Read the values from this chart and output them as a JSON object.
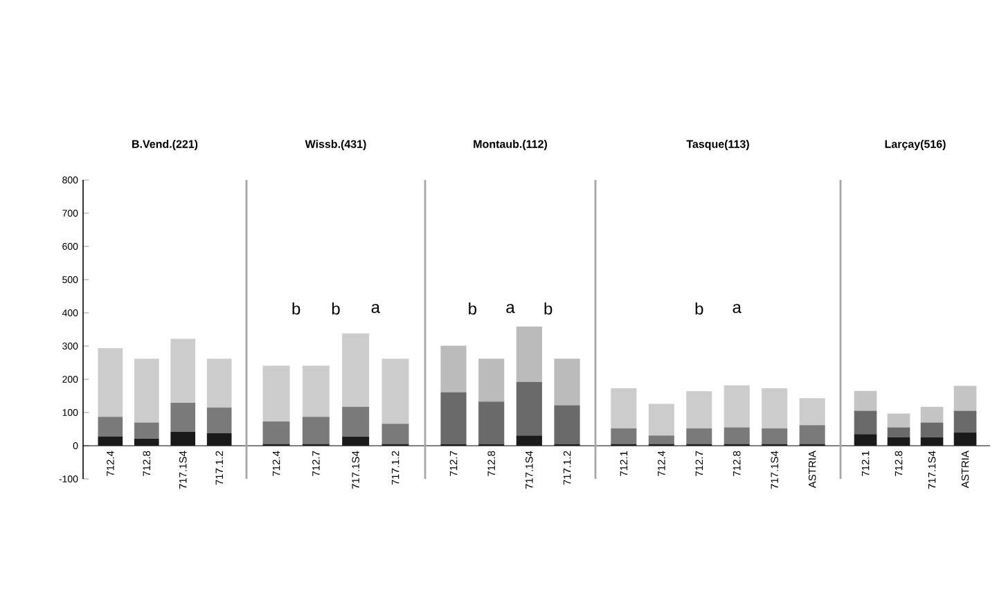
{
  "chart_data": [
    {
      "type": "bar",
      "title": "B.Vend.(221)",
      "categories": [
        "712.4",
        "712.8",
        "717.1S4",
        "717.1.2"
      ],
      "stacked": true,
      "ylim": [
        -100,
        800
      ],
      "yticks": [
        -100,
        0,
        100,
        200,
        300,
        400,
        500,
        600,
        700,
        800
      ],
      "series": [
        {
          "color": "#1a1a1a",
          "values": [
            28,
            21,
            42,
            38
          ]
        },
        {
          "color": "#7a7a7a",
          "values": [
            59,
            49,
            87,
            77
          ]
        },
        {
          "color": "#cccccc",
          "values": [
            207,
            192,
            193,
            147
          ]
        }
      ]
    },
    {
      "type": "bar",
      "title": "Wissb.(431)",
      "categories": [
        "712.4",
        "712.7",
        "717.1S4",
        "717.1.2"
      ],
      "stacked": true,
      "ylim": [
        -100,
        800
      ],
      "tick_labels": "x",
      "series": [
        {
          "color": "#1a1a1a",
          "values": [
            5,
            5,
            27,
            5
          ]
        },
        {
          "color": "#7a7a7a",
          "values": [
            68,
            82,
            90,
            61
          ]
        },
        {
          "color": "#cccccc",
          "values": [
            168,
            154,
            221,
            196
          ]
        }
      ],
      "annotations": [
        "b",
        "b",
        "a"
      ]
    },
    {
      "type": "bar",
      "title": "Montaub.(112)",
      "categories": [
        "712.7",
        "712.8",
        "717.1S4",
        "717.1.2"
      ],
      "stacked": true,
      "ylim": [
        -100,
        800
      ],
      "tick_labels": "x",
      "series": [
        {
          "color": "#1a1a1a",
          "values": [
            5,
            5,
            31,
            5
          ]
        },
        {
          "color": "#6a6a6a",
          "values": [
            156,
            128,
            161,
            117
          ]
        },
        {
          "color": "#bbbbbb",
          "values": [
            140,
            129,
            167,
            140
          ]
        }
      ],
      "annotations": [
        "b",
        "a",
        "b"
      ]
    },
    {
      "type": "bar",
      "title": "Tasque(113)",
      "categories": [
        "712.1",
        "712.4",
        "712.7",
        "712.8",
        "717.1S4",
        "ASTRIA"
      ],
      "stacked": true,
      "ylim": [
        -100,
        800
      ],
      "tick_labels": "x",
      "series": [
        {
          "color": "#1a1a1a",
          "values": [
            5,
            5,
            5,
            5,
            5,
            5
          ]
        },
        {
          "color": "#7a7a7a",
          "values": [
            47,
            26,
            47,
            50,
            47,
            57
          ]
        },
        {
          "color": "#cccccc",
          "values": [
            121,
            95,
            112,
            127,
            121,
            81
          ]
        }
      ],
      "annotations": [
        "b",
        "a"
      ]
    },
    {
      "type": "bar",
      "title": "Larçay(516)",
      "categories": [
        "712.1",
        "712.8",
        "717.1S4",
        "ASTRIA"
      ],
      "stacked": true,
      "ylim": [
        -100,
        800
      ],
      "tick_labels": "x",
      "series": [
        {
          "color": "#1a1a1a",
          "values": [
            35,
            25,
            25,
            40
          ]
        },
        {
          "color": "#6a6a6a",
          "values": [
            70,
            30,
            45,
            65
          ]
        },
        {
          "color": "#c4c4c4",
          "values": [
            60,
            42,
            47,
            75
          ]
        }
      ]
    }
  ]
}
